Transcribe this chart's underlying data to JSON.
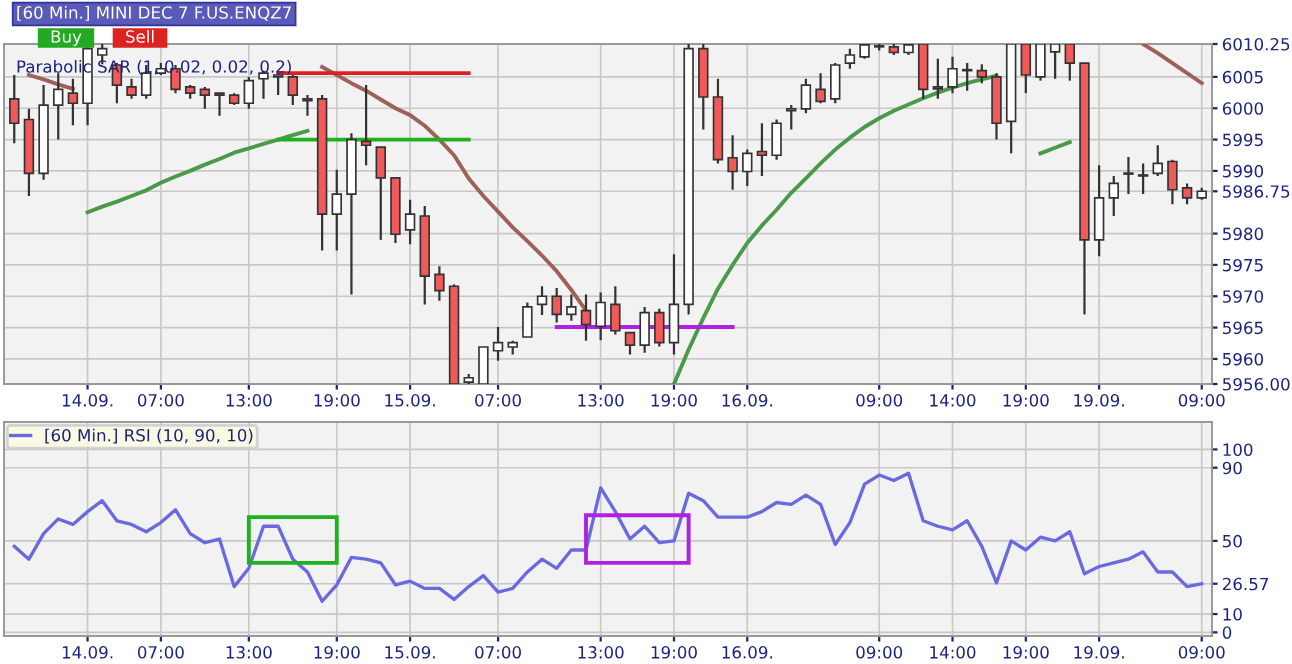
{
  "chart_data": [
    {
      "type": "candlestick",
      "title": "[60 Min.] MINI DEC 7 F.US.ENQZ7",
      "annotations": [
        "Buy",
        "Sell",
        "Parabolic SAR (1, 0.02, 0.02, 0.2)"
      ],
      "categories": [
        null,
        null,
        null,
        null,
        null,
        "14.09.",
        null,
        null,
        null,
        null,
        "07:00",
        null,
        null,
        null,
        null,
        null,
        "13:00",
        null,
        null,
        null,
        null,
        null,
        "19:00",
        null,
        null,
        null,
        null,
        "15.09.",
        null,
        null,
        null,
        null,
        null,
        "07:00",
        null,
        null,
        null,
        null,
        null,
        null,
        "13:00",
        null,
        null,
        null,
        null,
        "19:00",
        null,
        null,
        null,
        null,
        "16.09.",
        null,
        null,
        null,
        null,
        null,
        null,
        null,
        null,
        "09:00",
        null,
        null,
        null,
        null,
        "14:00",
        null,
        null,
        null,
        null,
        "19:00",
        null,
        null,
        null,
        null,
        "19.09.",
        null,
        null,
        null,
        null,
        null,
        null,
        "09:00"
      ],
      "ohlc": [
        [
          6001.5,
          6005.3,
          5994.4,
          5997.6
        ],
        [
          5998.2,
          5999.9,
          5986,
          5989.6
        ],
        [
          5989.6,
          6003.7,
          5988.6,
          6000.5
        ],
        [
          6000.5,
          6005.6,
          5995,
          6003
        ],
        [
          6002.4,
          6004.7,
          5997.3,
          6000.8
        ],
        [
          6000.8,
          6010.2,
          5997.3,
          6009.5
        ],
        [
          6008.5,
          6010.25,
          6007,
          6009.5
        ],
        [
          6006.9,
          6007.2,
          6000.8,
          6003.7
        ],
        [
          6003.4,
          6004.7,
          6001.5,
          6002.1
        ],
        [
          6002.1,
          6006.9,
          6001.5,
          6005.6
        ],
        [
          6005.6,
          6007.2,
          6005.3,
          6006.3
        ],
        [
          6006.3,
          6006.9,
          6002.4,
          6003
        ],
        [
          6003.4,
          6003.7,
          6001.5,
          6002.4
        ],
        [
          6003,
          6003.4,
          5999.9,
          6002.1
        ],
        [
          6002.4,
          6002.4,
          5998.8,
          6002.1
        ],
        [
          6002.1,
          6002.4,
          6000.5,
          6000.8
        ],
        [
          6000.8,
          6005,
          5999.9,
          6004.4
        ],
        [
          6004.7,
          6006,
          6001.5,
          6005.6
        ],
        [
          6005,
          6005.6,
          6002.1,
          6005.3
        ],
        [
          6005,
          6005.3,
          6000.5,
          6002.1
        ],
        [
          6001.5,
          6002.1,
          5998.8,
          6001.2
        ],
        [
          6001.5,
          6002.1,
          5977.3,
          5983.1
        ],
        [
          5983.1,
          5990.2,
          5977.3,
          5986.3
        ],
        [
          5986.3,
          5996,
          5970.3,
          5995
        ],
        [
          5994.7,
          6003.7,
          5990.9,
          5994.1
        ],
        [
          5993.8,
          5993.8,
          5979,
          5988.9
        ],
        [
          5988.9,
          5988.9,
          5978.5,
          5979.9
        ],
        [
          5980.6,
          5985.4,
          5978.3,
          5983.1
        ],
        [
          5982.8,
          5984.4,
          5968.7,
          5973.2
        ],
        [
          5973.5,
          5974.8,
          5969.3,
          5970.9
        ],
        [
          5971.6,
          5971.9,
          5956,
          5956
        ],
        [
          5956.3,
          5957.6,
          5956,
          5957
        ],
        [
          5956,
          5961.9,
          5956,
          5961.9
        ],
        [
          5961.3,
          5965.1,
          5959.7,
          5962.6
        ],
        [
          5961.9,
          5962.9,
          5960.7,
          5962.6
        ],
        [
          5963.5,
          5969,
          5963.5,
          5968.3
        ],
        [
          5968.7,
          5971.6,
          5967,
          5970
        ],
        [
          5970,
          5971.3,
          5965.8,
          5967.1
        ],
        [
          5967.1,
          5970.3,
          5966.1,
          5968.3
        ],
        [
          5967.7,
          5970.3,
          5962.9,
          5965.5
        ],
        [
          5965.2,
          5970.6,
          5963,
          5969
        ],
        [
          5968.7,
          5971.6,
          5963.9,
          5964.5
        ],
        [
          5964.2,
          5964.2,
          5960.7,
          5962.2
        ],
        [
          5962.2,
          5968.3,
          5961,
          5967.4
        ],
        [
          5967.4,
          5968,
          5962,
          5962.6
        ],
        [
          5962.6,
          5976.7,
          5960.7,
          5968.7
        ],
        [
          5968.7,
          6010.25,
          5967.1,
          6009.5
        ],
        [
          6009.5,
          6010.25,
          5996.6,
          6001.8
        ],
        [
          6001.8,
          6004.7,
          5991.2,
          5991.8
        ],
        [
          5992.1,
          5995.7,
          5987,
          5989.9
        ],
        [
          5989.9,
          5993.4,
          5987.6,
          5992.8
        ],
        [
          5993.1,
          5997.6,
          5989.2,
          5992.5
        ],
        [
          5992.5,
          5998.2,
          5991.8,
          5997.6
        ],
        [
          5999.6,
          6000.5,
          5996.6,
          5999.9
        ],
        [
          5999.9,
          6004.7,
          5999.2,
          6003.7
        ],
        [
          6003,
          6005.6,
          6000.8,
          6001.1
        ],
        [
          6001.5,
          6007.2,
          6000.8,
          6006.9
        ],
        [
          6007.2,
          6009.5,
          6006.3,
          6008.5
        ],
        [
          6008.2,
          6010.25,
          6007.9,
          6010.1
        ],
        [
          6009.8,
          6010.25,
          6009.2,
          6009.9
        ],
        [
          6009.8,
          6010.25,
          6008.5,
          6008.9
        ],
        [
          6008.9,
          6010.25,
          6008.5,
          6010.1
        ],
        [
          6010.25,
          6010.25,
          6001.5,
          6003
        ],
        [
          6003.4,
          6007.9,
          6001.5,
          6003.1
        ],
        [
          6003.4,
          6008.2,
          6002.4,
          6006.3
        ],
        [
          6006,
          6007.2,
          6002.8,
          6006.1
        ],
        [
          6006,
          6007,
          6004,
          6005
        ],
        [
          6005,
          6005.6,
          5995,
          5997.6
        ],
        [
          5997.9,
          6010.25,
          5992.8,
          6010.25
        ],
        [
          6010.25,
          6010.25,
          6002.4,
          6005.3
        ],
        [
          6005,
          6010.25,
          6004.4,
          6010.25
        ],
        [
          6009,
          6010.25,
          6004.7,
          6010.25
        ],
        [
          6010.25,
          6010.25,
          6004.4,
          6007.2
        ],
        [
          6007.2,
          6007.2,
          5967.1,
          5979
        ],
        [
          5979,
          5990.9,
          5976.4,
          5985.7
        ],
        [
          5985.7,
          5989.2,
          5982.8,
          5988
        ],
        [
          5989.5,
          5992.2,
          5986.3,
          5989.6
        ],
        [
          5989.2,
          5991.2,
          5986.3,
          5989.3
        ],
        [
          5989.6,
          5994.1,
          5989.2,
          5991.2
        ],
        [
          5991.5,
          5991.8,
          5984.7,
          5987
        ],
        [
          5987.3,
          5988,
          5984.7,
          5985.7
        ],
        [
          5985.7,
          5987.3,
          5985.4,
          5986.75
        ]
      ],
      "series": [
        {
          "type": "line",
          "color": "#a0605a",
          "values": [
            null,
            6005.3,
            6004.6,
            6003.8,
            6003.1,
            null,
            null,
            null,
            null,
            null,
            null,
            null,
            null,
            null,
            null,
            null,
            null,
            null,
            null,
            null,
            null,
            6006.6,
            6005.3,
            6004,
            6002.8,
            6001.4,
            6000,
            5998.9,
            5997.2,
            5995,
            5992.5,
            5988.8,
            5986,
            5983.5,
            5981,
            5978.8,
            5976.5,
            5974,
            5971,
            5967.7,
            null,
            null,
            null,
            null,
            null,
            null,
            null,
            null,
            null,
            null,
            null,
            null,
            null,
            null,
            null,
            null,
            null,
            null,
            null,
            null,
            null,
            null,
            null,
            null,
            null,
            null,
            null,
            null,
            null,
            null,
            null,
            null,
            null,
            null,
            null,
            null,
            null,
            6010.25,
            6008.8,
            6007.2,
            6005.6,
            6004
          ]
        },
        {
          "type": "line",
          "color": "#4a9a4a",
          "values": [
            null,
            null,
            null,
            null,
            null,
            5983.4,
            5984.3,
            5985.1,
            5986,
            5986.9,
            5988.1,
            5989.1,
            5990,
            5991,
            5991.9,
            5992.9,
            5993.6,
            5994.3,
            5995,
            5995.7,
            5996.4,
            null,
            null,
            null,
            null,
            null,
            null,
            null,
            null,
            null,
            null,
            null,
            null,
            null,
            null,
            null,
            null,
            null,
            null,
            null,
            null,
            null,
            null,
            null,
            null,
            5956,
            5961.5,
            5966.5,
            5971.2,
            5975,
            5978.5,
            5981.3,
            5983.8,
            5986.5,
            5988.8,
            5991.2,
            5993.4,
            5995.3,
            5997,
            5998.4,
            5999.6,
            6000.6,
            6001.6,
            6002.5,
            6003.3,
            6004,
            6004.6,
            6005.2,
            null,
            null,
            null,
            null,
            null,
            null,
            null,
            null,
            null,
            null,
            null,
            null,
            null,
            null
          ]
        },
        {
          "type": "line",
          "color": "#4a9a4a",
          "values": [
            null,
            null,
            null,
            null,
            null,
            null,
            null,
            null,
            null,
            null,
            null,
            null,
            null,
            null,
            null,
            null,
            null,
            null,
            null,
            null,
            null,
            null,
            null,
            null,
            null,
            null,
            null,
            null,
            null,
            null,
            null,
            null,
            null,
            null,
            null,
            null,
            null,
            null,
            null,
            null,
            null,
            null,
            null,
            null,
            null,
            null,
            null,
            null,
            null,
            null,
            null,
            null,
            null,
            null,
            null,
            null,
            null,
            null,
            null,
            null,
            null,
            null,
            null,
            null,
            null,
            null,
            null,
            null,
            null,
            null,
            5992.8,
            5993.7,
            5994.6,
            null,
            null,
            null,
            null,
            null,
            null,
            null,
            null,
            null
          ]
        },
        {
          "type": "line",
          "color": "#e02020",
          "values": [
            null,
            null,
            null,
            null,
            null,
            null,
            null,
            null,
            null,
            null,
            null,
            null,
            null,
            null,
            null,
            null,
            null,
            null,
            6005.6,
            6005.6,
            6005.6,
            6005.6,
            6005.6,
            6005.6,
            6005.6,
            6005.6,
            6005.6,
            6005.6,
            6005.6,
            6005.6,
            6005.6,
            6005.6,
            null,
            null,
            null,
            null,
            null,
            null,
            null,
            null,
            null,
            null,
            null,
            null,
            null,
            null,
            null,
            null,
            null,
            null,
            null,
            null,
            null,
            null,
            null,
            null,
            null,
            null,
            null,
            null,
            null,
            null,
            null,
            null,
            null,
            null,
            null,
            null,
            null,
            null,
            null,
            null,
            null,
            null,
            null,
            null,
            null,
            null,
            null,
            null,
            null,
            null
          ]
        },
        {
          "type": "line",
          "color": "#20b020",
          "values": [
            null,
            null,
            null,
            null,
            null,
            null,
            null,
            null,
            null,
            null,
            null,
            null,
            null,
            null,
            null,
            null,
            null,
            null,
            5995,
            5995,
            5995,
            5995,
            5995,
            5995,
            5995,
            5995,
            5995,
            5995,
            5995,
            5995,
            5995,
            5995,
            null,
            null,
            null,
            null,
            null,
            null,
            null,
            null,
            null,
            null,
            null,
            null,
            null,
            null,
            null,
            null,
            null,
            null,
            null,
            null,
            null,
            null,
            null,
            null,
            null,
            null,
            null,
            null,
            null,
            null,
            null,
            null,
            null,
            null,
            null,
            null,
            null,
            null,
            null,
            null,
            null,
            null,
            null,
            null,
            null,
            null,
            null,
            null,
            null,
            null
          ]
        },
        {
          "type": "line",
          "color": "#b020e0",
          "values": [
            null,
            null,
            null,
            null,
            null,
            null,
            null,
            null,
            null,
            null,
            null,
            null,
            null,
            null,
            null,
            null,
            null,
            null,
            null,
            null,
            null,
            null,
            null,
            null,
            null,
            null,
            null,
            null,
            null,
            null,
            null,
            null,
            null,
            null,
            null,
            null,
            null,
            5965.1,
            5965.1,
            5965.1,
            5965.1,
            5965.1,
            5965.1,
            5965.1,
            5965.1,
            5965.1,
            5965.1,
            5965.1,
            5965.1,
            5965.1,
            null,
            null,
            null,
            null,
            null,
            null,
            null,
            null,
            null,
            null,
            null,
            null,
            null,
            null,
            null,
            null,
            null,
            null,
            null,
            null,
            null,
            null,
            null,
            null,
            null,
            null,
            null,
            null,
            null,
            null,
            null,
            null
          ]
        }
      ],
      "ylim": [
        5956,
        6010.25
      ],
      "yticks": [
        {
          "value": 5956,
          "label": "5956.00"
        },
        5960,
        5965,
        5970,
        5975,
        5980,
        {
          "value": 5986.75,
          "label": "5986.75"
        },
        5990,
        5995,
        6000,
        6005,
        {
          "value": 6010.25,
          "label": "6010.25"
        }
      ],
      "grid": true
    },
    {
      "type": "line",
      "legend": "top left",
      "categories": [
        null,
        null,
        null,
        null,
        null,
        "14.09.",
        null,
        null,
        null,
        null,
        "07:00",
        null,
        null,
        null,
        null,
        null,
        "13:00",
        null,
        null,
        null,
        null,
        null,
        "19:00",
        null,
        null,
        null,
        null,
        "15.09.",
        null,
        null,
        null,
        null,
        null,
        "07:00",
        null,
        null,
        null,
        null,
        null,
        null,
        "13:00",
        null,
        null,
        null,
        null,
        "19:00",
        null,
        null,
        null,
        null,
        "16.09.",
        null,
        null,
        null,
        null,
        null,
        null,
        null,
        null,
        "09:00",
        null,
        null,
        null,
        null,
        "14:00",
        null,
        null,
        null,
        null,
        "19:00",
        null,
        null,
        null,
        null,
        "19.09.",
        null,
        null,
        null,
        null,
        null,
        null,
        "09:00"
      ],
      "series": [
        {
          "name": "[60 Min.] RSI (10, 90, 10)",
          "color": "#6a6ae0",
          "values": [
            47,
            40,
            54,
            62,
            59,
            66,
            72,
            61,
            59,
            55,
            60,
            67,
            54,
            49,
            51,
            25,
            35,
            58,
            58,
            40,
            33,
            17,
            26,
            41,
            40,
            38,
            26,
            28,
            24,
            24,
            18,
            25,
            31,
            22,
            24,
            33,
            40,
            35,
            45,
            45,
            79,
            66,
            51,
            58,
            49,
            50,
            76,
            72,
            63,
            63,
            63,
            66,
            71,
            70,
            75,
            70,
            48,
            60,
            81,
            86,
            83,
            87,
            61,
            58,
            56,
            61,
            47,
            27,
            50,
            45,
            52,
            50,
            55,
            32,
            36,
            38,
            40,
            44,
            33,
            33,
            25,
            26.57
          ]
        }
      ],
      "ylim": [
        -2,
        115
      ],
      "yticks": [
        0,
        10,
        {
          "value": 26.57,
          "label": "26.57"
        },
        50,
        90,
        100
      ],
      "grid": true
    }
  ]
}
